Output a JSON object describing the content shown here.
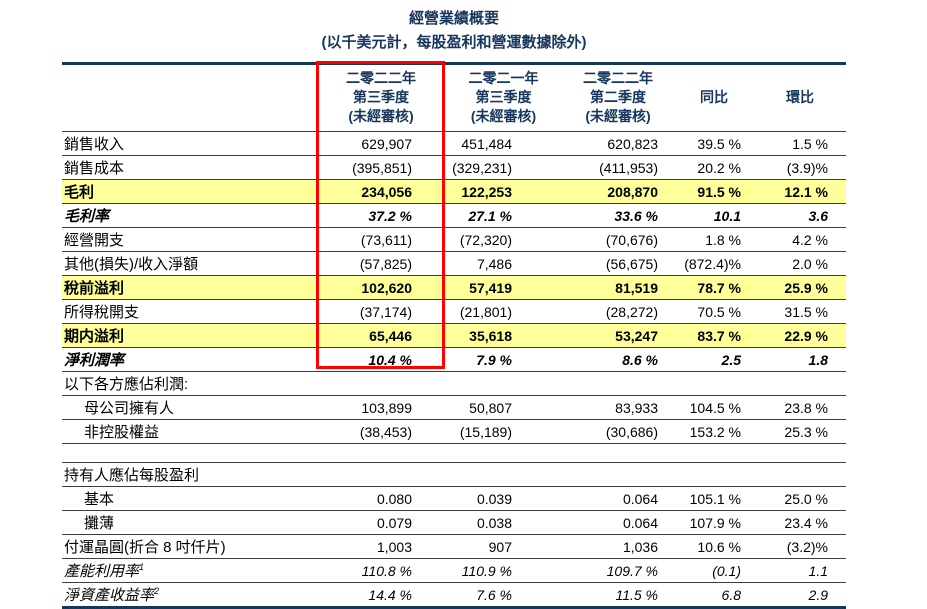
{
  "title": "經營業績概要",
  "subtitle": "(以千美元計，每股盈利和營運數據除外)",
  "colors": {
    "heading_navy": "#17365D",
    "highlight_yellow": "#FFFF99",
    "callout_red": "#FF0000",
    "rule_gray": "#3d3d3d"
  },
  "table": {
    "headers": [
      {
        "lines": [
          "二零二二年",
          "第三季度",
          "(未經審核)"
        ],
        "highlighted": true
      },
      {
        "lines": [
          "二零二一年",
          "第三季度",
          "(未經審核)"
        ],
        "highlighted": false
      },
      {
        "lines": [
          "二零二二年",
          "第二季度",
          "(未經審核)"
        ],
        "highlighted": false
      },
      {
        "lines": [
          "同比"
        ],
        "highlighted": false
      },
      {
        "lines": [
          "環比"
        ],
        "highlighted": false
      }
    ],
    "rows": [
      {
        "label": "銷售收入",
        "values": [
          "629,907",
          "451,484",
          "620,823",
          "39.5 %",
          "1.5 %"
        ],
        "style": "normal"
      },
      {
        "label": "銷售成本",
        "values": [
          "(395,851)",
          "(329,231)",
          "(411,953)",
          "20.2 %",
          "(3.9)%"
        ],
        "style": "normal"
      },
      {
        "label": "毛利",
        "values": [
          "234,056",
          "122,253",
          "208,870",
          "91.5 %",
          "12.1 %"
        ],
        "style": "bold-yellow"
      },
      {
        "label": "毛利率",
        "values": [
          "37.2 %",
          "27.1 %",
          "33.6 %",
          "10.1",
          "3.6"
        ],
        "style": "bold-italic"
      },
      {
        "label": "經營開支",
        "values": [
          "(73,611)",
          "(72,320)",
          "(70,676)",
          "1.8 %",
          "4.2 %"
        ],
        "style": "normal"
      },
      {
        "label": "其他(損失)/收入淨額",
        "values": [
          "(57,825)",
          "7,486",
          "(56,675)",
          "(872.4)%",
          "2.0 %"
        ],
        "style": "normal"
      },
      {
        "label": "稅前溢利",
        "values": [
          "102,620",
          "57,419",
          "81,519",
          "78.7 %",
          "25.9 %"
        ],
        "style": "bold-yellow"
      },
      {
        "label": "所得稅開支",
        "values": [
          "(37,174)",
          "(21,801)",
          "(28,272)",
          "70.5 %",
          "31.5 %"
        ],
        "style": "normal"
      },
      {
        "label": "期内溢利",
        "values": [
          "65,446",
          "35,618",
          "53,247",
          "83.7 %",
          "22.9 %"
        ],
        "style": "bold-yellow"
      },
      {
        "label": "淨利潤率",
        "values": [
          "10.4 %",
          "7.9 %",
          "8.6 %",
          "2.5",
          "1.8"
        ],
        "style": "bold-italic"
      },
      {
        "label": "以下各方應佔利潤:",
        "values": [
          "",
          "",
          "",
          "",
          ""
        ],
        "style": "section"
      },
      {
        "label": "母公司擁有人",
        "values": [
          "103,899",
          "50,807",
          "83,933",
          "104.5 %",
          "23.8 %"
        ],
        "style": "indent"
      },
      {
        "label": "非控股權益",
        "values": [
          "(38,453)",
          "(15,189)",
          "(30,686)",
          "153.2 %",
          "25.3 %"
        ],
        "style": "indent"
      },
      {
        "label": "",
        "values": [
          "",
          "",
          "",
          "",
          ""
        ],
        "style": "spacer"
      },
      {
        "label": "持有人應佔每股盈利",
        "values": [
          "",
          "",
          "",
          "",
          ""
        ],
        "style": "section"
      },
      {
        "label": "基本",
        "values": [
          "0.080",
          "0.039",
          "0.064",
          "105.1 %",
          "25.0 %"
        ],
        "style": "indent"
      },
      {
        "label": "攤薄",
        "values": [
          "0.079",
          "0.038",
          "0.064",
          "107.9 %",
          "23.4 %"
        ],
        "style": "indent"
      },
      {
        "label": "付運晶圓(折合 8 吋仟片)",
        "values": [
          "1,003",
          "907",
          "1,036",
          "10.6 %",
          "(3.2)%"
        ],
        "style": "normal"
      },
      {
        "label": "產能利用率",
        "sup": "1",
        "values": [
          "110.8 %",
          "110.9 %",
          "109.7 %",
          "(0.1)",
          "1.1"
        ],
        "style": "italic"
      },
      {
        "label": "淨資產收益率",
        "sup": "2",
        "values": [
          "14.4 %",
          "7.6 %",
          "11.5 %",
          "6.8",
          "2.9"
        ],
        "style": "italic"
      }
    ]
  },
  "callout": {
    "name": "q3-2022-column-highlight"
  }
}
